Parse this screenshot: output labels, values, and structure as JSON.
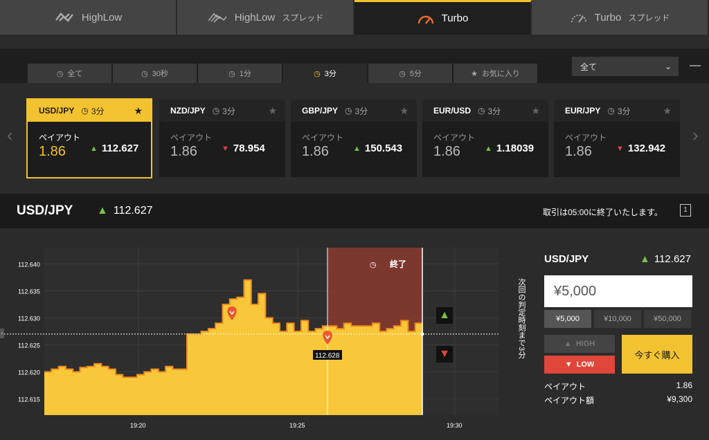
{
  "top_tabs": [
    {
      "label": "HighLow",
      "suffix": ""
    },
    {
      "label": "HighLow",
      "suffix": "スプレッド"
    },
    {
      "label": "Turbo",
      "suffix": ""
    },
    {
      "label": "Turbo",
      "suffix": "スプレッド"
    }
  ],
  "period_tabs": [
    "全て",
    "30秒",
    "1分",
    "3分",
    "5分",
    "お気に入り"
  ],
  "filter": {
    "value": "全て"
  },
  "cards": [
    {
      "symbol": "USD/JPY",
      "time": "3分",
      "payout_label": "ペイアウト",
      "payout": "1.86",
      "rate": "112.627",
      "direction": "up"
    },
    {
      "symbol": "NZD/JPY",
      "time": "3分",
      "payout_label": "ペイアウト",
      "payout": "1.86",
      "rate": "78.954",
      "direction": "down"
    },
    {
      "symbol": "GBP/JPY",
      "time": "3分",
      "payout_label": "ペイアウト",
      "payout": "1.86",
      "rate": "150.543",
      "direction": "up"
    },
    {
      "symbol": "EUR/USD",
      "time": "3分",
      "payout_label": "ペイアウト",
      "payout": "1.86",
      "rate": "1.18039",
      "direction": "up"
    },
    {
      "symbol": "EUR/JPY",
      "time": "3分",
      "payout_label": "ペイアウト",
      "payout": "1.86",
      "rate": "132.942",
      "direction": "down"
    }
  ],
  "asset": {
    "symbol": "USD/JPY",
    "rate": "112.627",
    "notice": "取引は05:00に終了いたします。"
  },
  "chart_data": {
    "type": "area",
    "y_ticks": [
      "112.640",
      "112.635",
      "112.630",
      "112.625",
      "112.620",
      "112.615"
    ],
    "x_ticks": [
      "19:20",
      "19:25",
      "19:30"
    ],
    "ylim": [
      112.612,
      112.643
    ],
    "current_value": 112.627,
    "marker_label": "112.628",
    "end_label": "終了",
    "countdown_text": "次回の判定時刻まで3分",
    "values": [
      112.62,
      112.6205,
      112.621,
      112.6205,
      112.62,
      112.6208,
      112.621,
      112.6215,
      112.621,
      112.6205,
      112.6195,
      112.619,
      112.619,
      112.6195,
      112.62,
      112.6205,
      112.62,
      112.621,
      112.6205,
      112.6205,
      112.627,
      112.627,
      112.6275,
      112.628,
      112.629,
      112.6325,
      112.6335,
      112.6338,
      112.637,
      112.6325,
      112.6345,
      112.63,
      112.629,
      112.6275,
      112.629,
      112.6275,
      112.6295,
      112.6275,
      112.628,
      112.6285,
      112.6285,
      112.628,
      112.629,
      112.6285,
      112.6285,
      112.6285,
      112.629,
      112.6275,
      112.628,
      112.6285,
      112.6295,
      112.6275,
      112.629,
      112.627
    ]
  },
  "order": {
    "symbol": "USD/JPY",
    "rate": "112.627",
    "amount": "¥5,000",
    "presets": [
      "¥5,000",
      "¥10,000",
      "¥50,000"
    ],
    "high_label": "HIGH",
    "low_label": "LOW",
    "buy_label": "今すぐ購入",
    "payout_label": "ペイアウト",
    "payout_value": "1.86",
    "payout_amount_label": "ペイアウト額",
    "payout_amount_value": "¥9,300"
  },
  "colors": {
    "accent": "#f2c230",
    "up": "#7ac142",
    "down": "#e0463a",
    "expiry_zone": "#8b3a2e"
  }
}
